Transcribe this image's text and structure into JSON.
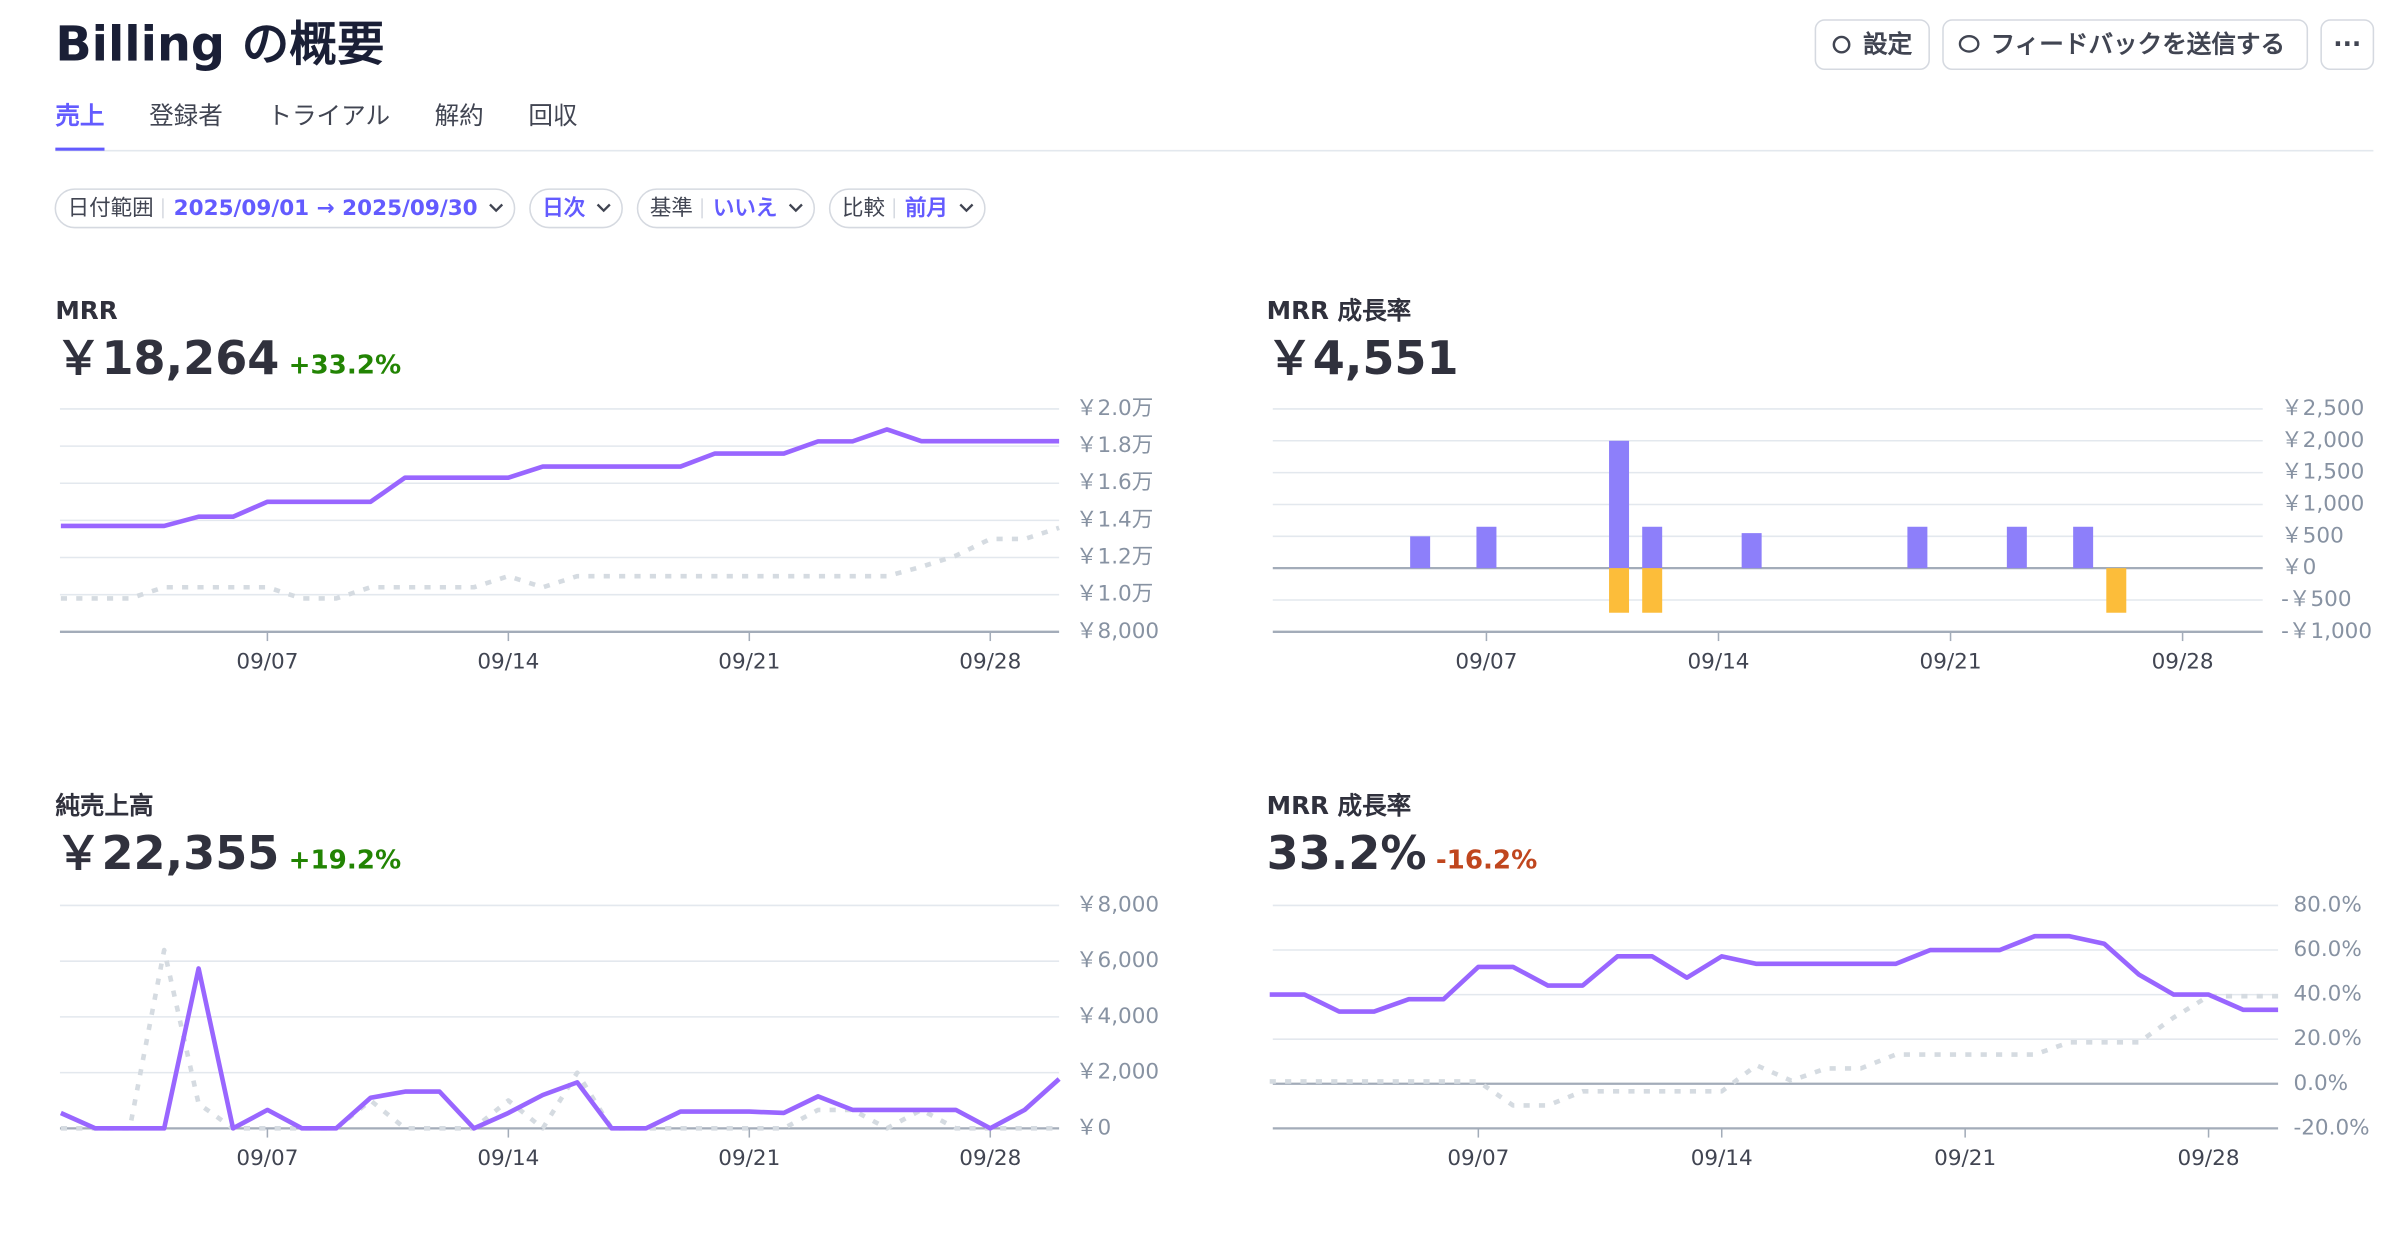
{
  "header": {
    "title": "Billing の概要",
    "buttons": [
      "設定",
      "フィードバックを送信する",
      "···"
    ]
  },
  "tabs": [
    "売上",
    "登録者",
    "トライアル",
    "解約",
    "回収"
  ],
  "active_tab": 0,
  "filters": [
    {
      "label": "日付範囲",
      "value": "2025/09/01 → 2025/09/30"
    },
    {
      "value": "日次"
    },
    {
      "label": "基準",
      "value": "いいえ"
    },
    {
      "label": "比較",
      "value": "前月"
    }
  ],
  "chart_data": [
    {
      "type": "line",
      "title": "MRR",
      "headline": "￥18,264",
      "change": "+33.2%",
      "change_color": "#228403",
      "x": [
        "09/01",
        "09/02",
        "09/03",
        "09/04",
        "09/05",
        "09/06",
        "09/07",
        "09/08",
        "09/09",
        "09/10",
        "09/11",
        "09/12",
        "09/13",
        "09/14",
        "09/15",
        "09/16",
        "09/17",
        "09/18",
        "09/19",
        "09/20",
        "09/21",
        "09/22",
        "09/23",
        "09/24",
        "09/25",
        "09/26",
        "09/27",
        "09/28",
        "09/29",
        "09/30"
      ],
      "xticks": [
        "09/07",
        "09/14",
        "09/21",
        "09/28"
      ],
      "ylim": [
        8000,
        20000
      ],
      "yticks": [
        {
          "value": 8000,
          "label": "￥8,000"
        },
        {
          "value": 10000,
          "label": "￥1.0万"
        },
        {
          "value": 12000,
          "label": "￥1.2万"
        },
        {
          "value": 14000,
          "label": "￥1.4万"
        },
        {
          "value": 16000,
          "label": "￥1.6万"
        },
        {
          "value": 18000,
          "label": "￥1.8万"
        },
        {
          "value": 20000,
          "label": "￥2.0万"
        }
      ],
      "series": [
        {
          "color": "#d5dbe1",
          "dashed": true,
          "values": [
            9800,
            9800,
            9800,
            10400,
            10400,
            10400,
            10400,
            9800,
            9800,
            10400,
            10400,
            10400,
            10400,
            11000,
            10400,
            11000,
            11000,
            11000,
            11000,
            11000,
            11000,
            11000,
            11000,
            11000,
            11000,
            11500,
            12100,
            13000,
            13000,
            13600
          ]
        },
        {
          "color": "#9966ff",
          "dashed": false,
          "values": [
            13700,
            13700,
            13700,
            13700,
            14200,
            14200,
            15000,
            15000,
            15000,
            15000,
            16300,
            16300,
            16300,
            16300,
            16900,
            16900,
            16900,
            16900,
            16900,
            17600,
            17600,
            17600,
            18250,
            18250,
            18900,
            18264,
            18264,
            18264,
            18264,
            18264
          ]
        }
      ]
    },
    {
      "type": "bar",
      "title": "MRR 成長率",
      "headline": "￥4,551",
      "x": [
        "09/01",
        "09/02",
        "09/03",
        "09/04",
        "09/05",
        "09/06",
        "09/07",
        "09/08",
        "09/09",
        "09/10",
        "09/11",
        "09/12",
        "09/13",
        "09/14",
        "09/15",
        "09/16",
        "09/17",
        "09/18",
        "09/19",
        "09/20",
        "09/21",
        "09/22",
        "09/23",
        "09/24",
        "09/25",
        "09/26",
        "09/27",
        "09/28",
        "09/29",
        "09/30"
      ],
      "xticks": [
        "09/07",
        "09/14",
        "09/21",
        "09/28"
      ],
      "ylim": [
        -1000,
        2500
      ],
      "yticks": [
        {
          "value": -1000,
          "label": "-￥1,000"
        },
        {
          "value": -500,
          "label": "-￥500"
        },
        {
          "value": 0,
          "label": "￥0"
        },
        {
          "value": 500,
          "label": "￥500"
        },
        {
          "value": 1000,
          "label": "￥1,000"
        },
        {
          "value": 1500,
          "label": "￥1,500"
        },
        {
          "value": 2000,
          "label": "￥2,000"
        },
        {
          "value": 2500,
          "label": "￥2,500"
        }
      ],
      "series": [
        {
          "color": "#8d7ffa",
          "values": [
            0,
            0,
            0,
            0,
            500,
            0,
            650,
            0,
            0,
            0,
            2000,
            650,
            0,
            0,
            550,
            0,
            0,
            0,
            0,
            650,
            0,
            0,
            650,
            0,
            650,
            0,
            0,
            0,
            0,
            0
          ]
        },
        {
          "color": "#fcbd3a",
          "values": [
            0,
            0,
            0,
            0,
            0,
            0,
            0,
            0,
            0,
            0,
            -700,
            -700,
            0,
            0,
            0,
            0,
            0,
            0,
            0,
            0,
            0,
            0,
            0,
            0,
            0,
            -700,
            0,
            0,
            0,
            0
          ]
        }
      ]
    },
    {
      "type": "line",
      "title": "純売上高",
      "headline": "￥22,355",
      "change": "+19.2%",
      "change_color": "#228403",
      "x": [
        "09/01",
        "09/02",
        "09/03",
        "09/04",
        "09/05",
        "09/06",
        "09/07",
        "09/08",
        "09/09",
        "09/10",
        "09/11",
        "09/12",
        "09/13",
        "09/14",
        "09/15",
        "09/16",
        "09/17",
        "09/18",
        "09/19",
        "09/20",
        "09/21",
        "09/22",
        "09/23",
        "09/24",
        "09/25",
        "09/26",
        "09/27",
        "09/28",
        "09/29",
        "09/30"
      ],
      "xticks": [
        "09/07",
        "09/14",
        "09/21",
        "09/28"
      ],
      "ylim": [
        0,
        8000
      ],
      "yticks": [
        {
          "value": 0,
          "label": "￥0"
        },
        {
          "value": 2000,
          "label": "￥2,000"
        },
        {
          "value": 4000,
          "label": "￥4,000"
        },
        {
          "value": 6000,
          "label": "￥6,000"
        },
        {
          "value": 8000,
          "label": "￥8,000"
        }
      ],
      "series": [
        {
          "color": "#d5dbe1",
          "dashed": true,
          "values": [
            0,
            0,
            0,
            6400,
            880,
            0,
            0,
            0,
            0,
            1000,
            0,
            0,
            0,
            1000,
            0,
            2000,
            0,
            0,
            0,
            0,
            0,
            0,
            660,
            660,
            0,
            660,
            0,
            0,
            0,
            0
          ]
        },
        {
          "color": "#9966ff",
          "dashed": false,
          "values": [
            550,
            0,
            0,
            0,
            5740,
            0,
            660,
            0,
            0,
            1100,
            1320,
            1320,
            0,
            550,
            1200,
            1650,
            0,
            0,
            600,
            600,
            600,
            550,
            1150,
            660,
            660,
            660,
            660,
            0,
            660,
            1770
          ]
        }
      ]
    },
    {
      "type": "line",
      "title": "MRR 成長率",
      "headline": "33.2%",
      "change": "-16.2%",
      "change_color": "#c0461e",
      "x": [
        "09/01",
        "09/02",
        "09/03",
        "09/04",
        "09/05",
        "09/06",
        "09/07",
        "09/08",
        "09/09",
        "09/10",
        "09/11",
        "09/12",
        "09/13",
        "09/14",
        "09/15",
        "09/16",
        "09/17",
        "09/18",
        "09/19",
        "09/20",
        "09/21",
        "09/22",
        "09/23",
        "09/24",
        "09/25",
        "09/26",
        "09/27",
        "09/28",
        "09/29",
        "09/30"
      ],
      "xticks": [
        "09/07",
        "09/14",
        "09/21",
        "09/28"
      ],
      "ylim": [
        -20,
        80
      ],
      "yticks": [
        {
          "value": -20,
          "label": "-20.0%"
        },
        {
          "value": 0,
          "label": "0.0%"
        },
        {
          "value": 20,
          "label": "20.0%"
        },
        {
          "value": 40,
          "label": "40.0%"
        },
        {
          "value": 60,
          "label": "60.0%"
        },
        {
          "value": 80,
          "label": "80.0%"
        }
      ],
      "series": [
        {
          "color": "#d5dbe1",
          "dashed": true,
          "values": [
            1,
            1,
            1,
            1,
            1,
            1,
            1,
            -9.7,
            -9.7,
            -3.4,
            -3.4,
            -3.4,
            -3.4,
            -3.4,
            8.3,
            1.4,
            6.9,
            6.9,
            13.1,
            13.1,
            13.1,
            13.1,
            13.1,
            18.6,
            18.6,
            18.6,
            29.7,
            39.3,
            39.3,
            39.3
          ]
        },
        {
          "color": "#9966ff",
          "dashed": false,
          "values": [
            40,
            40,
            32.4,
            32.4,
            37.9,
            37.9,
            52.4,
            52.4,
            44.1,
            44.1,
            57.2,
            57.2,
            47.6,
            57.2,
            53.8,
            53.8,
            53.8,
            53.8,
            53.8,
            60,
            60,
            60,
            66.2,
            66.2,
            62.8,
            49,
            40,
            40,
            33.2,
            33.2
          ]
        }
      ]
    }
  ]
}
